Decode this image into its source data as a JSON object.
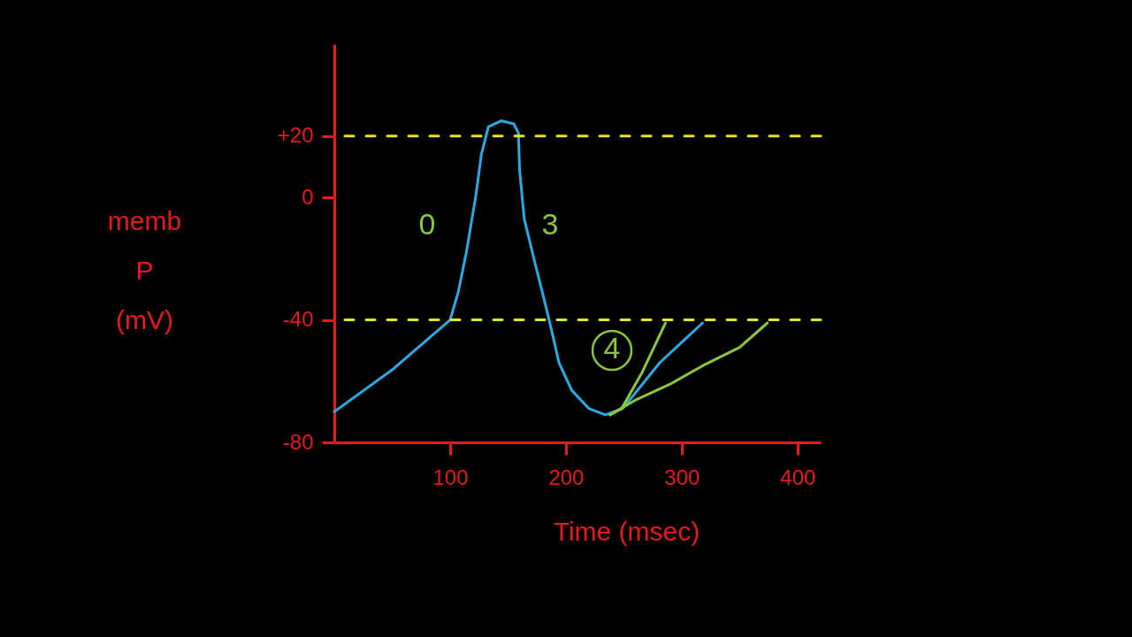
{
  "chart_data": {
    "type": "line",
    "xlabel": "Time (msec)",
    "ylabel": "memb P (mV)",
    "xlim": [
      0,
      420
    ],
    "ylim": [
      -80,
      50
    ],
    "xticks": [
      100,
      200,
      300,
      400
    ],
    "yticks": [
      {
        "value": 20,
        "label": "+20"
      },
      0,
      -40,
      -80
    ],
    "series": [
      {
        "color": "#29abe2",
        "x": [
          0,
          51,
          100,
          107,
          114,
          122,
          127,
          133,
          144,
          155,
          159,
          160,
          164,
          173,
          181,
          188,
          194,
          205,
          220,
          234,
          249,
          281,
          318
        ],
        "values": [
          -70,
          -56,
          -40,
          -31,
          -18,
          0,
          14,
          23,
          25,
          24,
          21,
          9,
          -7,
          -21,
          -33,
          -44,
          -54,
          -63,
          -69,
          -71,
          -69,
          -54,
          -41
        ]
      },
      {
        "color": "#8cc63f",
        "x": [
          238,
          248,
          266,
          286
        ],
        "values": [
          -71,
          -69,
          -57,
          -41
        ]
      },
      {
        "color": "#8cc63f",
        "x": [
          238,
          261,
          290,
          318,
          350,
          374
        ],
        "values": [
          -71,
          -66,
          -61,
          -55,
          -49,
          -41
        ]
      }
    ],
    "ref_lines": [
      {
        "axis": "y",
        "value": 20,
        "color": "#e6e619",
        "line_style": "dashed"
      },
      {
        "axis": "y",
        "value": -40,
        "color": "#e6e619",
        "line_style": "dashed"
      }
    ],
    "annotations": [
      "0",
      "3",
      "4"
    ],
    "grid": false,
    "marker": "none"
  }
}
